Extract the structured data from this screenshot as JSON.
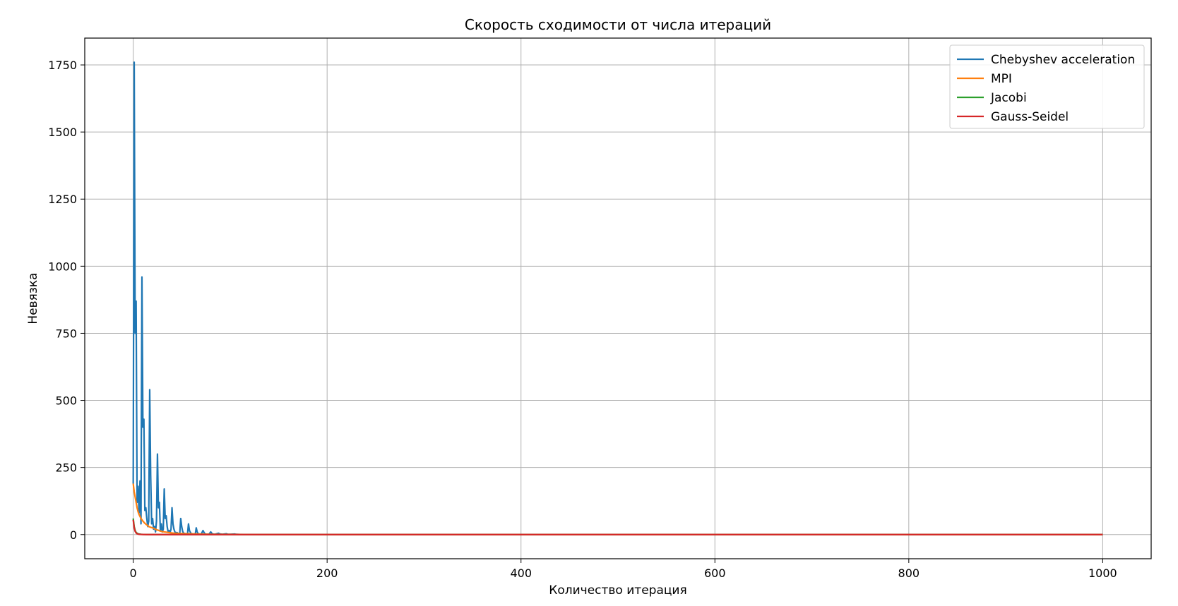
{
  "chart_data": {
    "type": "line",
    "title": "Скорость сходимости от числа итераций",
    "xlabel": "Количество итерация",
    "ylabel": "Невязка",
    "xlim": [
      -50,
      1050
    ],
    "ylim": [
      -90,
      1850
    ],
    "xticks": [
      0,
      200,
      400,
      600,
      800,
      1000
    ],
    "yticks": [
      0,
      250,
      500,
      750,
      1000,
      1250,
      1500,
      1750
    ],
    "grid": true,
    "legend_position": "top-right",
    "series": [
      {
        "name": "Chebyshev acceleration",
        "color": "#1f77b4",
        "x": [
          0,
          1,
          2,
          3,
          4,
          5,
          6,
          7,
          8,
          9,
          10,
          11,
          12,
          13,
          14,
          15,
          16,
          17,
          18,
          19,
          20,
          21,
          22,
          23,
          24,
          25,
          26,
          27,
          28,
          29,
          30,
          31,
          32,
          33,
          34,
          35,
          36,
          37,
          38,
          39,
          40,
          41,
          42,
          43,
          44,
          45,
          46,
          48,
          49,
          50,
          51,
          52,
          54,
          56,
          57,
          58,
          59,
          60,
          62,
          64,
          65,
          66,
          67,
          70,
          72,
          73,
          74,
          75,
          78,
          80,
          81,
          82,
          84,
          88,
          89,
          90,
          92,
          96,
          97,
          98,
          100,
          105,
          106,
          110,
          120,
          130,
          150,
          200,
          400,
          600,
          800,
          1000
        ],
        "values": [
          190,
          1760,
          750,
          870,
          120,
          180,
          80,
          200,
          40,
          960,
          400,
          430,
          90,
          100,
          60,
          30,
          50,
          540,
          220,
          40,
          60,
          20,
          30,
          10,
          50,
          300,
          100,
          120,
          15,
          40,
          10,
          20,
          170,
          60,
          70,
          30,
          10,
          15,
          8,
          20,
          100,
          40,
          20,
          10,
          5,
          8,
          5,
          3,
          60,
          30,
          12,
          5,
          3,
          2,
          40,
          15,
          8,
          3,
          2,
          1,
          25,
          10,
          3,
          1,
          15,
          8,
          3,
          1,
          1,
          10,
          5,
          2,
          1,
          5,
          3,
          2,
          1,
          3,
          2,
          1,
          1,
          2,
          1,
          0.5,
          0.3,
          0.1,
          0.05,
          0.01,
          0,
          0,
          0,
          0
        ]
      },
      {
        "name": "MPI",
        "color": "#ff7f0e",
        "x": [
          0,
          1,
          2,
          3,
          4,
          5,
          6,
          8,
          10,
          12,
          14,
          16,
          18,
          20,
          22,
          24,
          26,
          28,
          30,
          34,
          38,
          42,
          48,
          56,
          66,
          80,
          100,
          130,
          200,
          400,
          600,
          800,
          1000
        ],
        "values": [
          190,
          160,
          140,
          120,
          100,
          85,
          75,
          60,
          50,
          42,
          36,
          30,
          27,
          25,
          22,
          18,
          16,
          13,
          11,
          9,
          7,
          5,
          4,
          3,
          2,
          1.2,
          0.6,
          0.2,
          0.05,
          0,
          0,
          0,
          0
        ]
      },
      {
        "name": "Jacobi",
        "color": "#2ca02c",
        "x": [
          0,
          1,
          2,
          3,
          4,
          5,
          6,
          8,
          10,
          14,
          20,
          30,
          50,
          100,
          200,
          400,
          600,
          800,
          1000
        ],
        "values": [
          60,
          30,
          15,
          8,
          5,
          3,
          2,
          1,
          0.5,
          0.2,
          0.1,
          0.05,
          0.01,
          0,
          0,
          0,
          0,
          0,
          0
        ]
      },
      {
        "name": "Gauss-Seidel",
        "color": "#d62728",
        "x": [
          0,
          1,
          2,
          3,
          4,
          5,
          6,
          8,
          10,
          14,
          20,
          30,
          50,
          100,
          200,
          400,
          600,
          800,
          1000
        ],
        "values": [
          55,
          25,
          12,
          6,
          3,
          2,
          1,
          0.5,
          0.3,
          0.1,
          0.05,
          0.02,
          0.01,
          0,
          0,
          0,
          0,
          0,
          0
        ]
      }
    ]
  }
}
